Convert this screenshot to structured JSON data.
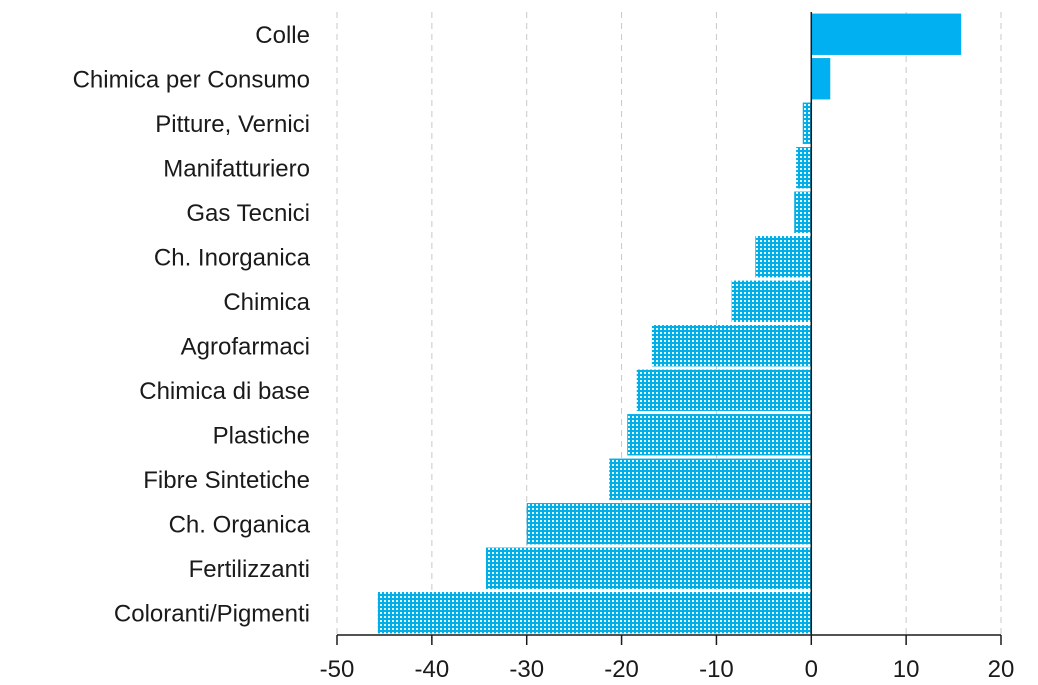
{
  "chart_data": {
    "type": "bar",
    "orientation": "horizontal",
    "categories": [
      "Colle",
      "Chimica per Consumo",
      "Pitture, Vernici",
      "Manifatturiero",
      "Gas Tecnici",
      "Ch. Inorganica",
      "Chimica",
      "Agrofarmaci",
      "Chimica di base",
      "Plastiche",
      "Fibre Sintetiche",
      "Ch. Organica",
      "Fertilizzanti",
      "Coloranti/Pigmenti"
    ],
    "values": [
      15.8,
      2.0,
      -0.9,
      -1.6,
      -1.8,
      -5.9,
      -8.4,
      -16.8,
      -18.4,
      -19.4,
      -21.3,
      -30.0,
      -34.3,
      -45.7
    ],
    "xlim": [
      -50,
      20
    ],
    "xticks": [
      "-50",
      "-40",
      "-30",
      "-20",
      "-10",
      "0",
      "10",
      "20"
    ],
    "grid": "vertical dashed",
    "colors": {
      "positive": "#00b0f0",
      "negative": "#00b0f0",
      "negative_pattern": "dotted",
      "grid": "#c8c8c8",
      "axis": "#1a1a1a"
    }
  }
}
